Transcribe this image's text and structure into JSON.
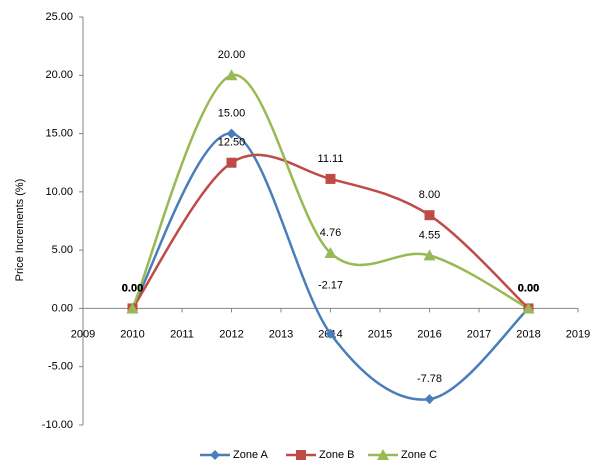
{
  "chart_data": {
    "type": "line",
    "y_label": "Price Increments (%)",
    "x": [
      2010,
      2012,
      2014,
      2016,
      2018
    ],
    "xlim": [
      2009,
      2019
    ],
    "xticks": [
      2009,
      2010,
      2011,
      2012,
      2013,
      2014,
      2015,
      2016,
      2017,
      2018,
      2019
    ],
    "ylim": [
      -10,
      25
    ],
    "yticks": [
      {
        "value": -10,
        "label": "-10.00"
      },
      {
        "value": -5,
        "label": "-5.00"
      },
      {
        "value": 0,
        "label": "0.00"
      },
      {
        "value": 5,
        "label": "5.00"
      },
      {
        "value": 10,
        "label": "10.00"
      },
      {
        "value": 15,
        "label": "15.00"
      },
      {
        "value": 20,
        "label": "20.00"
      },
      {
        "value": 25,
        "label": "25.00"
      }
    ],
    "smooth": true,
    "legend": "bottom",
    "series": [
      {
        "name": "Zone A",
        "color": "#4a7ebb",
        "marker": "diamond",
        "values": [
          0,
          15,
          -2.17,
          -7.78,
          0
        ],
        "value_labels": [
          "0.00",
          "15.00",
          "-2.17",
          "-7.78",
          "0.00"
        ]
      },
      {
        "name": "Zone B",
        "color": "#be4b48",
        "marker": "square",
        "values": [
          0,
          12.5,
          11.11,
          8,
          0
        ],
        "value_labels": [
          "0.00",
          "12.50",
          "11.11",
          "8.00",
          "0.00"
        ]
      },
      {
        "name": "Zone C",
        "color": "#98b954",
        "marker": "triangle",
        "values": [
          0,
          20,
          4.76,
          4.55,
          0
        ],
        "value_labels": [
          "0.00",
          "20.00",
          "4.76",
          "4.55",
          "0.00"
        ]
      }
    ]
  }
}
